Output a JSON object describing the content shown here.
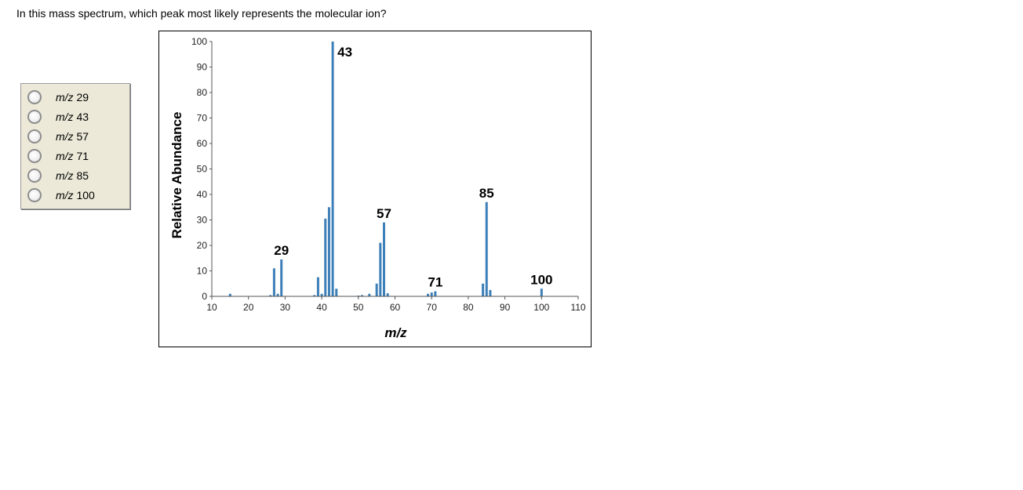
{
  "question": "In this mass spectrum, which peak most likely represents the molecular ion?",
  "options": [
    {
      "prefix": "m/z",
      "value": "29"
    },
    {
      "prefix": "m/z",
      "value": "43"
    },
    {
      "prefix": "m/z",
      "value": "57"
    },
    {
      "prefix": "m/z",
      "value": "71"
    },
    {
      "prefix": "m/z",
      "value": "85"
    },
    {
      "prefix": "m/z",
      "value": "100"
    }
  ],
  "colors": {
    "bar": "#3d7fb8",
    "options_bg": "#ece9d8"
  },
  "chart_data": {
    "type": "bar",
    "xlabel": "m/z",
    "ylabel": "Relative Abundance",
    "xlim": [
      10,
      110
    ],
    "ylim": [
      0,
      100
    ],
    "xticks": [
      10,
      20,
      30,
      40,
      50,
      60,
      70,
      80,
      90,
      100,
      110
    ],
    "yticks": [
      0,
      10,
      20,
      30,
      40,
      50,
      60,
      70,
      80,
      90,
      100
    ],
    "grid": false,
    "peaks": [
      {
        "x": 15,
        "y": 1
      },
      {
        "x": 26,
        "y": 0.5
      },
      {
        "x": 27,
        "y": 11
      },
      {
        "x": 28,
        "y": 1
      },
      {
        "x": 29,
        "y": 14.5
      },
      {
        "x": 38,
        "y": 0.5
      },
      {
        "x": 39,
        "y": 7.5
      },
      {
        "x": 40,
        "y": 1
      },
      {
        "x": 41,
        "y": 30.5
      },
      {
        "x": 42,
        "y": 35
      },
      {
        "x": 43,
        "y": 100
      },
      {
        "x": 44,
        "y": 3
      },
      {
        "x": 50,
        "y": 0.3
      },
      {
        "x": 51,
        "y": 0.5
      },
      {
        "x": 53,
        "y": 1
      },
      {
        "x": 55,
        "y": 5
      },
      {
        "x": 56,
        "y": 21
      },
      {
        "x": 57,
        "y": 29
      },
      {
        "x": 58,
        "y": 1.2
      },
      {
        "x": 69,
        "y": 1
      },
      {
        "x": 70,
        "y": 1.5
      },
      {
        "x": 71,
        "y": 2
      },
      {
        "x": 84,
        "y": 5
      },
      {
        "x": 85,
        "y": 37
      },
      {
        "x": 86,
        "y": 2.5
      },
      {
        "x": 100,
        "y": 3
      }
    ],
    "annotations": [
      {
        "text": "29",
        "x": 29,
        "y": 14.5
      },
      {
        "text": "43",
        "x": 43,
        "y": 100
      },
      {
        "text": "57",
        "x": 57,
        "y": 29
      },
      {
        "text": "71",
        "x": 71,
        "y": 2
      },
      {
        "text": "85",
        "x": 85,
        "y": 37
      },
      {
        "text": "100",
        "x": 100,
        "y": 3
      }
    ]
  }
}
